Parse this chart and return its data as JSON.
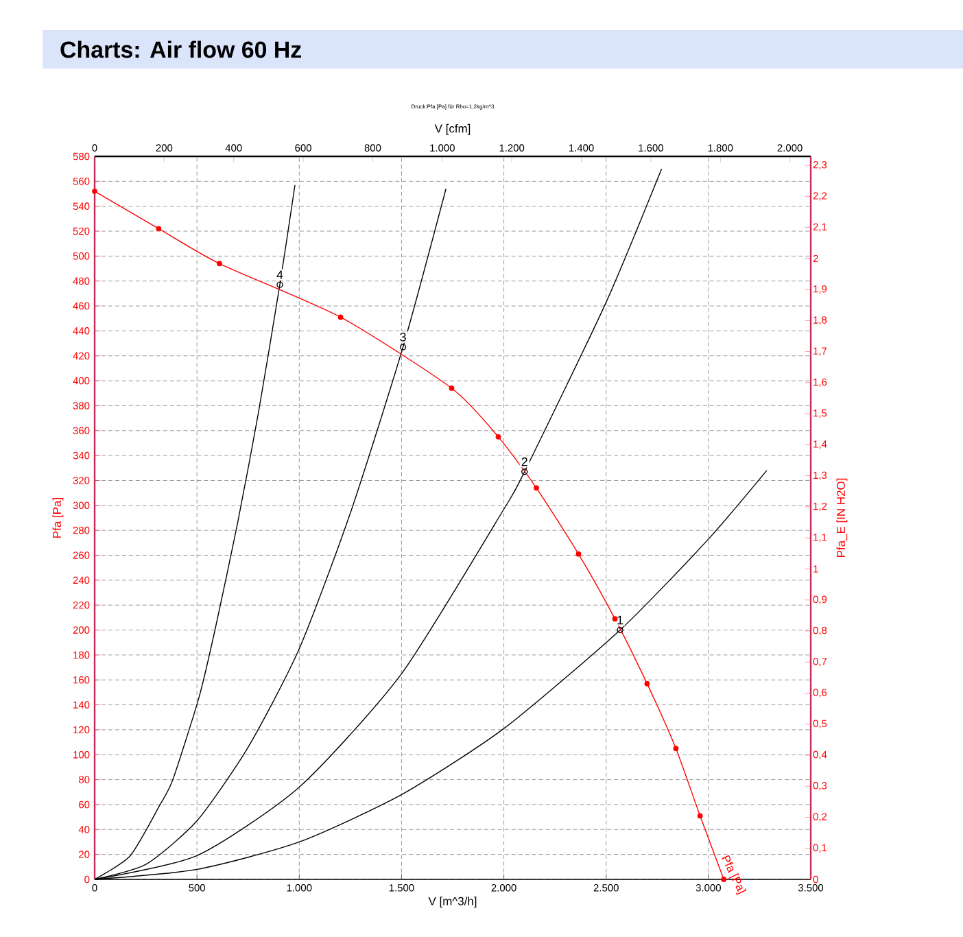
{
  "chart_data": {
    "type": "line",
    "title": "Charts: Air flow 60 Hz",
    "subtitle": "Druck:Pfa [Pa] für Rho=1,2kg/m^3",
    "xlabel": "V [m^3/h]",
    "ylabel": "Pfa [Pa]",
    "x2label": "V [cfm]",
    "y2label": "Pfa_E [IN H2O]",
    "xlim": [
      0,
      3500
    ],
    "ylim": [
      0,
      580
    ],
    "x2lim": [
      0,
      2060
    ],
    "y2lim": [
      0,
      2.329
    ],
    "xticks": [
      0,
      500,
      {
        "value": 1000,
        "label": "1.000"
      },
      {
        "value": 1500,
        "label": "1.500"
      },
      {
        "value": 2000,
        "label": "2.000"
      },
      {
        "value": 2500,
        "label": "2.500"
      },
      {
        "value": 3000,
        "label": "3.000"
      },
      {
        "value": 3500,
        "label": "3.500"
      }
    ],
    "yticks": [
      0,
      20,
      40,
      60,
      80,
      100,
      120,
      140,
      160,
      180,
      200,
      220,
      240,
      260,
      280,
      300,
      320,
      340,
      360,
      380,
      400,
      420,
      440,
      460,
      480,
      500,
      520,
      540,
      560,
      580
    ],
    "x2ticks": [
      0,
      200,
      400,
      600,
      800,
      {
        "value": 1000,
        "label": "1.000"
      },
      {
        "value": 1200,
        "label": "1.200"
      },
      {
        "value": 1400,
        "label": "1.400"
      },
      {
        "value": 1600,
        "label": "1.600"
      },
      {
        "value": 1800,
        "label": "1.800"
      },
      {
        "value": 2000,
        "label": "2.000"
      }
    ],
    "y2ticks": [
      0,
      {
        "value": 0.1,
        "label": "0,1"
      },
      {
        "value": 0.2,
        "label": "0,2"
      },
      {
        "value": 0.3,
        "label": "0,3"
      },
      {
        "value": 0.4,
        "label": "0,4"
      },
      {
        "value": 0.5,
        "label": "0,5"
      },
      {
        "value": 0.6,
        "label": "0,6"
      },
      {
        "value": 0.7,
        "label": "0,7"
      },
      {
        "value": 0.8,
        "label": "0,8"
      },
      {
        "value": 0.9,
        "label": "0,9"
      },
      1,
      {
        "value": 1.1,
        "label": "1,1"
      },
      {
        "value": 1.2,
        "label": "1,2"
      },
      {
        "value": 1.3,
        "label": "1,3"
      },
      {
        "value": 1.4,
        "label": "1,4"
      },
      {
        "value": 1.5,
        "label": "1,5"
      },
      {
        "value": 1.6,
        "label": "1,6"
      },
      {
        "value": 1.7,
        "label": "1,7"
      },
      {
        "value": 1.8,
        "label": "1,8"
      },
      {
        "value": 1.9,
        "label": "1,9"
      },
      2,
      {
        "value": 2.1,
        "label": "2,1"
      },
      {
        "value": 2.2,
        "label": "2,2"
      },
      {
        "value": 2.3,
        "label": "2,3"
      }
    ],
    "grid": true,
    "line_style": "solid",
    "series": [
      {
        "color": "#000000",
        "marker": "none",
        "x": [
          0,
          174,
          320,
          382,
          510,
          588,
          700,
          800,
          905,
          979
        ],
        "values": [
          0,
          19,
          60,
          80,
          146,
          200,
          287,
          374,
          477,
          557
        ]
      },
      {
        "color": "#000000",
        "marker": "none",
        "x": [
          0,
          250,
          500,
          750,
          1000,
          1250,
          1507,
          1717
        ],
        "values": [
          0,
          12,
          47,
          106,
          185,
          294,
          427,
          554
        ]
      },
      {
        "color": "#000000",
        "marker": "none",
        "x": [
          0,
          500,
          1000,
          1500,
          2000,
          2101,
          2500,
          2771
        ],
        "values": [
          0,
          19,
          74,
          165,
          297,
          327,
          463,
          570
        ]
      },
      {
        "color": "#000000",
        "marker": "none",
        "x": [
          0,
          500,
          1000,
          1500,
          2000,
          2568,
          3000,
          3285
        ],
        "values": [
          0,
          8,
          30,
          68,
          121,
          200,
          273,
          328
        ]
      },
      {
        "name": "Pfa [Pa]",
        "color": "#ff0000",
        "marker": "circle",
        "x": [
          0,
          313,
          610,
          1202,
          1745,
          1973,
          2159,
          2365,
          2543,
          2700,
          2841,
          2959,
          3075
        ],
        "values": [
          552,
          522,
          494,
          451,
          394,
          355,
          314,
          261,
          209,
          157,
          105,
          51,
          0
        ]
      },
      {
        "type": "scatter",
        "color": "#000000",
        "marker": "circle",
        "x": [
          2568,
          2101,
          1507,
          905
        ],
        "values": [
          200,
          327,
          427,
          477
        ]
      }
    ],
    "annotations": [
      {
        "text": "1",
        "x": 2568,
        "y": 200
      },
      {
        "text": "2",
        "x": 2101,
        "y": 327
      },
      {
        "text": "3",
        "x": 1507,
        "y": 427
      },
      {
        "text": "4",
        "x": 905,
        "y": 477
      }
    ]
  }
}
